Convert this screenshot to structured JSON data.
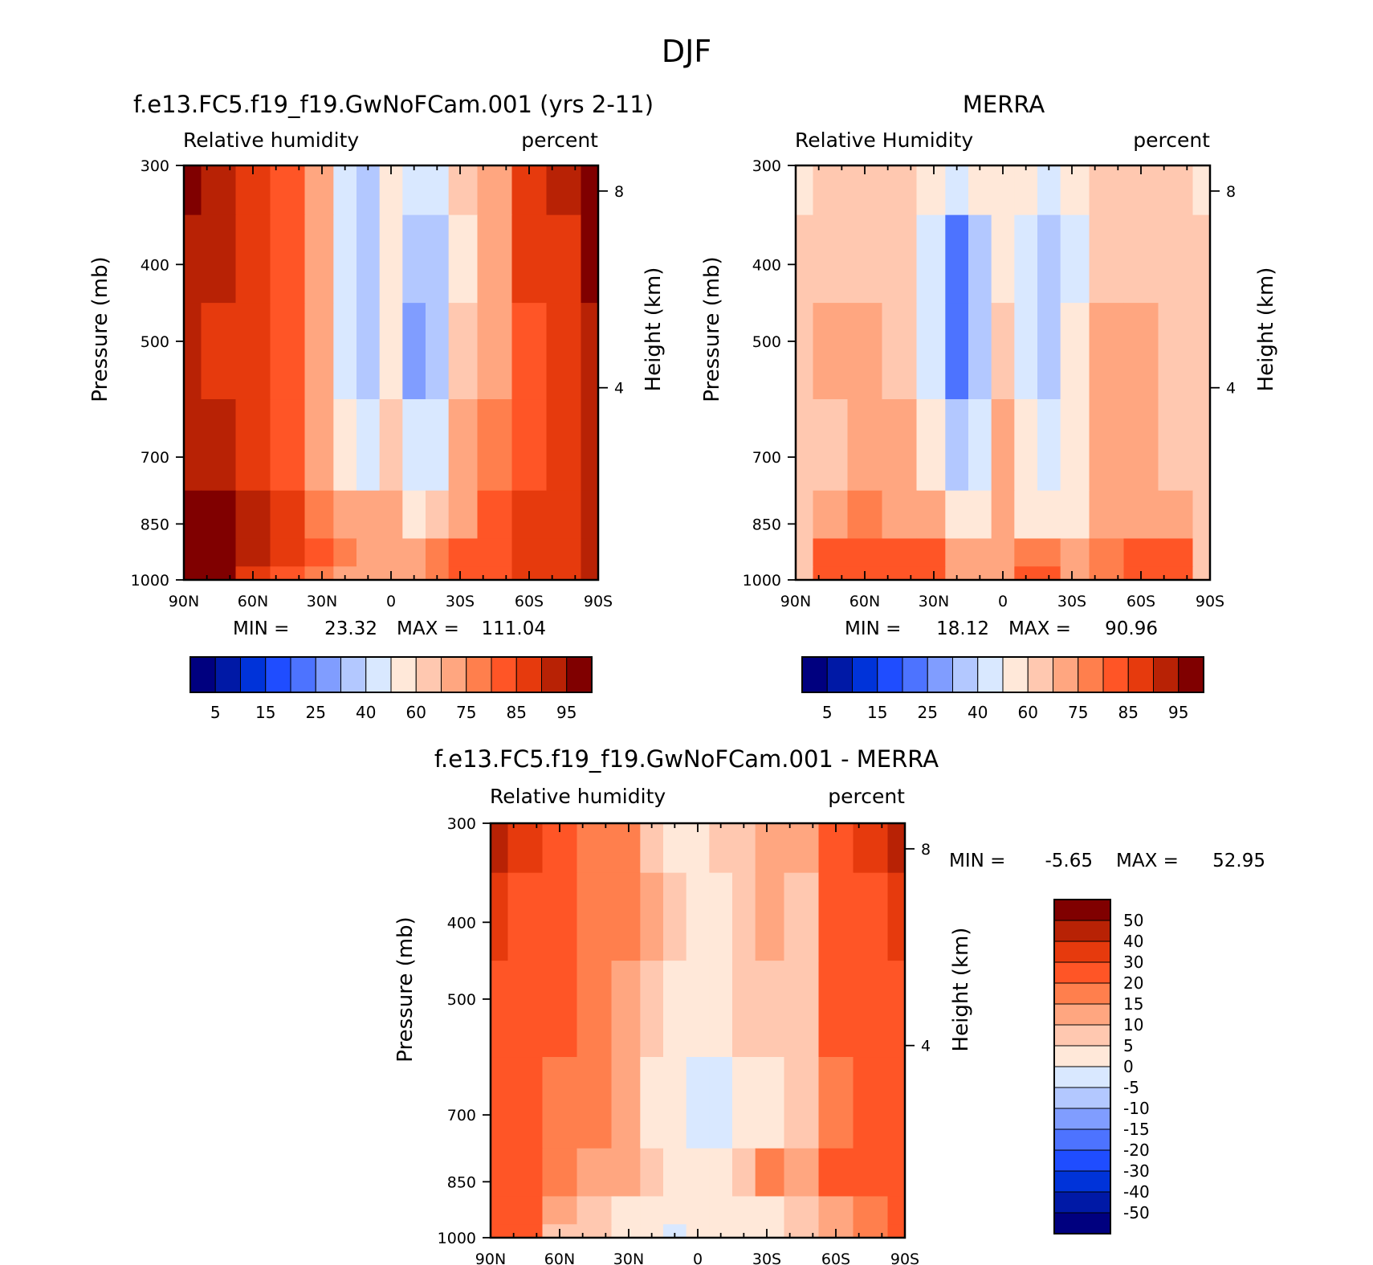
{
  "figure": {
    "title": "DJF"
  },
  "colors": {
    "rh_levels": [
      "#00007f",
      "#0019a6",
      "#0033d9",
      "#1f4dff",
      "#4d73ff",
      "#809dff",
      "#b3c8ff",
      "#d9e8ff",
      "#ffe8d9",
      "#ffc8b0",
      "#ffa680",
      "#ff7f4d",
      "#ff5526",
      "#e63a0d",
      "#b82205",
      "#800000"
    ],
    "diff_levels": [
      "#00007f",
      "#0019a6",
      "#0033d9",
      "#1f4dff",
      "#4d73ff",
      "#809dff",
      "#b3c8ff",
      "#d9e8ff",
      "#ffe8d9",
      "#ffc8b0",
      "#ffa680",
      "#ff7f4d",
      "#ff5526",
      "#e63a0d",
      "#b82205",
      "#800000"
    ]
  },
  "chart_data": [
    {
      "type": "heatmap",
      "title": "f.e13.FC5.f19_f19.GwNoFCam.001 (yrs 2-11)",
      "left_label": "Relative humidity",
      "right_label": "percent",
      "ylabel": "Pressure (mb)",
      "y2label": "Height (km)",
      "x_ticks": [
        "90N",
        "60N",
        "30N",
        "0",
        "30S",
        "60S",
        "90S"
      ],
      "y_ticks": [
        "300",
        "400",
        "500",
        "700",
        "850",
        "1000"
      ],
      "y2_ticks": [
        "8",
        "4"
      ],
      "stats": {
        "min_label": "MIN =",
        "min": "23.32",
        "max_label": "MAX =",
        "max": "111.04"
      },
      "colorbar": {
        "orientation": "horizontal",
        "labels": [
          "5",
          "15",
          "25",
          "40",
          "60",
          "75",
          "85",
          "95"
        ]
      },
      "lat": [
        -90,
        -75,
        -60,
        -45,
        -30,
        -20,
        -10,
        0,
        10,
        20,
        30,
        45,
        60,
        75,
        90
      ],
      "pressure": [
        300,
        400,
        500,
        700,
        850,
        925,
        1000
      ],
      "values": [
        [
          99,
          92,
          88,
          72,
          62,
          48,
          40,
          50,
          38,
          44,
          68,
          80,
          88,
          92,
          99
        ],
        [
          95,
          88,
          85,
          70,
          58,
          38,
          30,
          50,
          32,
          40,
          66,
          82,
          86,
          90,
          94
        ],
        [
          92,
          87,
          84,
          72,
          60,
          35,
          28,
          52,
          35,
          42,
          68,
          80,
          86,
          88,
          90
        ],
        [
          90,
          86,
          82,
          75,
          65,
          45,
          40,
          62,
          45,
          50,
          70,
          82,
          88,
          90,
          90
        ],
        [
          90,
          88,
          88,
          80,
          72,
          62,
          55,
          66,
          65,
          70,
          78,
          86,
          92,
          96,
          96
        ],
        [
          90,
          88,
          88,
          84,
          80,
          76,
          70,
          72,
          72,
          76,
          82,
          88,
          92,
          98,
          98
        ],
        [
          90,
          88,
          86,
          84,
          80,
          78,
          72,
          70,
          70,
          72,
          78,
          84,
          88,
          96,
          98
        ]
      ]
    },
    {
      "type": "heatmap",
      "title": "MERRA",
      "left_label": "Relative Humidity",
      "right_label": "percent",
      "ylabel": "Pressure (mb)",
      "y2label": "Height (km)",
      "x_ticks": [
        "90N",
        "60N",
        "30N",
        "0",
        "30S",
        "60S",
        "90S"
      ],
      "y_ticks": [
        "300",
        "400",
        "500",
        "700",
        "850",
        "1000"
      ],
      "y2_ticks": [
        "8",
        "4"
      ],
      "stats": {
        "min_label": "MIN =",
        "min": "18.12",
        "max_label": "MAX =",
        "max": "90.96"
      },
      "colorbar": {
        "orientation": "horizontal",
        "labels": [
          "5",
          "15",
          "25",
          "40",
          "60",
          "75",
          "85",
          "95"
        ]
      },
      "lat": [
        -90,
        -75,
        -60,
        -45,
        -30,
        -20,
        -10,
        0,
        10,
        20,
        30,
        45,
        60,
        75,
        90
      ],
      "pressure": [
        300,
        400,
        500,
        700,
        850,
        925,
        1000
      ],
      "values": [
        [
          58,
          60,
          62,
          62,
          52,
          40,
          50,
          58,
          50,
          40,
          52,
          62,
          62,
          60,
          58
        ],
        [
          60,
          64,
          64,
          64,
          48,
          30,
          40,
          58,
          38,
          22,
          40,
          62,
          64,
          64,
          62
        ],
        [
          62,
          64,
          66,
          66,
          50,
          32,
          45,
          60,
          35,
          20,
          40,
          64,
          66,
          66,
          62
        ],
        [
          62,
          64,
          66,
          66,
          55,
          45,
          52,
          66,
          45,
          38,
          52,
          66,
          66,
          64,
          62
        ],
        [
          62,
          72,
          72,
          68,
          58,
          58,
          58,
          66,
          58,
          58,
          66,
          72,
          75,
          68,
          62
        ],
        [
          62,
          80,
          82,
          75,
          72,
          78,
          78,
          72,
          70,
          74,
          80,
          84,
          82,
          80,
          62
        ],
        [
          62,
          80,
          82,
          76,
          74,
          80,
          80,
          72,
          70,
          74,
          82,
          84,
          82,
          80,
          62
        ]
      ]
    },
    {
      "type": "heatmap",
      "title": "f.e13.FC5.f19_f19.GwNoFCam.001 - MERRA",
      "left_label": "Relative humidity",
      "right_label": "percent",
      "ylabel": "Pressure (mb)",
      "y2label": "Height (km)",
      "x_ticks": [
        "90N",
        "60N",
        "30N",
        "0",
        "30S",
        "60S",
        "90S"
      ],
      "y_ticks": [
        "300",
        "400",
        "500",
        "700",
        "850",
        "1000"
      ],
      "y2_ticks": [
        "8",
        "4"
      ],
      "stats": {
        "min_label": "MIN =",
        "min": "-5.65",
        "max_label": "MAX =",
        "max": "52.95"
      },
      "colorbar": {
        "orientation": "vertical",
        "labels": [
          "50",
          "40",
          "30",
          "20",
          "15",
          "10",
          "5",
          "0",
          "-5",
          "-10",
          "-15",
          "-20",
          "-30",
          "-40",
          "-50"
        ]
      },
      "lat": [
        -90,
        -75,
        -60,
        -45,
        -30,
        -20,
        -10,
        0,
        10,
        20,
        30,
        45,
        60,
        75,
        90
      ],
      "pressure": [
        300,
        400,
        500,
        700,
        850,
        925,
        1000
      ],
      "values": [
        [
          42,
          32,
          26,
          10,
          10,
          8,
          6,
          2,
          4,
          8,
          16,
          18,
          26,
          32,
          40
        ],
        [
          36,
          24,
          21,
          8,
          10,
          8,
          4,
          2,
          6,
          12,
          16,
          18,
          22,
          26,
          32
        ],
        [
          28,
          23,
          20,
          8,
          8,
          6,
          4,
          2,
          2,
          8,
          14,
          18,
          20,
          20,
          24
        ],
        [
          28,
          24,
          16,
          6,
          2,
          0,
          -2,
          -2,
          0,
          4,
          10,
          16,
          18,
          20,
          22
        ],
        [
          28,
          26,
          20,
          12,
          16,
          6,
          4,
          2,
          4,
          8,
          12,
          14,
          16,
          24,
          28
        ],
        [
          28,
          18,
          10,
          8,
          4,
          2,
          2,
          2,
          2,
          2,
          4,
          8,
          10,
          20,
          26
        ],
        [
          26,
          16,
          10,
          6,
          2,
          2,
          2,
          2,
          -2,
          0,
          4,
          6,
          8,
          20,
          26
        ]
      ]
    }
  ]
}
